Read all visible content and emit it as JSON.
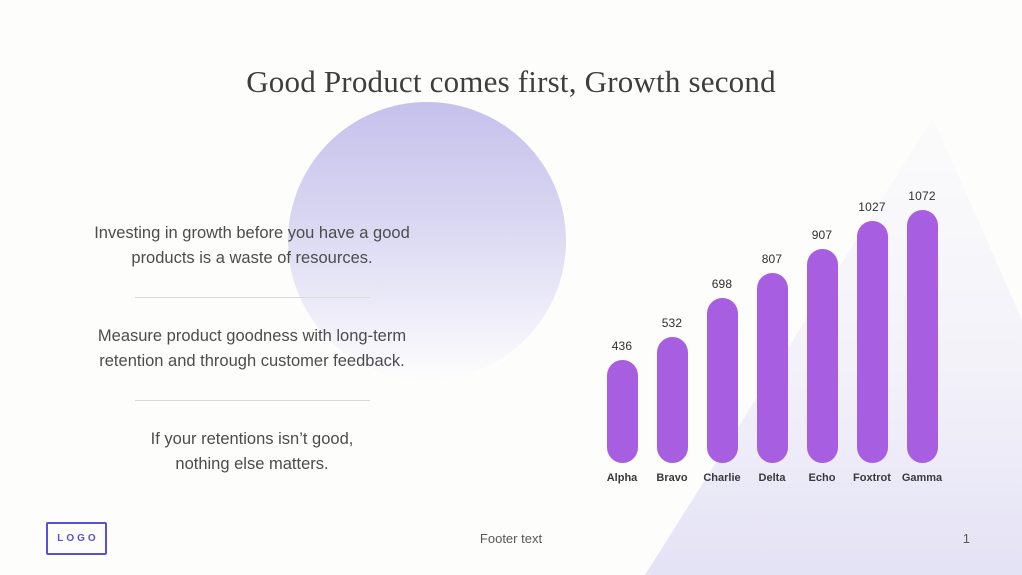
{
  "slide": {
    "title": "Good Product comes first, Growth second",
    "bullets": [
      "Investing in growth before you have a good\nproducts is a waste of resources.",
      "Measure product goodness with long-term\nretention and through customer feedback.",
      "If your retentions isn’t good,\nnothing else matters."
    ]
  },
  "footer": {
    "logo_label": "LOGO",
    "text": "Footer text",
    "page_number": "1"
  },
  "chart_data": {
    "type": "bar",
    "categories": [
      "Alpha",
      "Bravo",
      "Charlie",
      "Delta",
      "Echo",
      "Foxtrot",
      "Gamma"
    ],
    "values": [
      436,
      532,
      698,
      807,
      907,
      1027,
      1072
    ],
    "title": "",
    "xlabel": "",
    "ylabel": "",
    "ylim": [
      0,
      1072
    ],
    "grid": false,
    "legend": false,
    "data_labels": true,
    "bar_color": "#a75ee0"
  },
  "colors": {
    "accent_purple": "#a75ee0",
    "logo_purple": "#5851d6",
    "circle_lavender": "#c5c1ec",
    "band_lavender": "#e2e0f4",
    "title_text": "#3e3e40",
    "body_text": "#4c4c4e"
  }
}
